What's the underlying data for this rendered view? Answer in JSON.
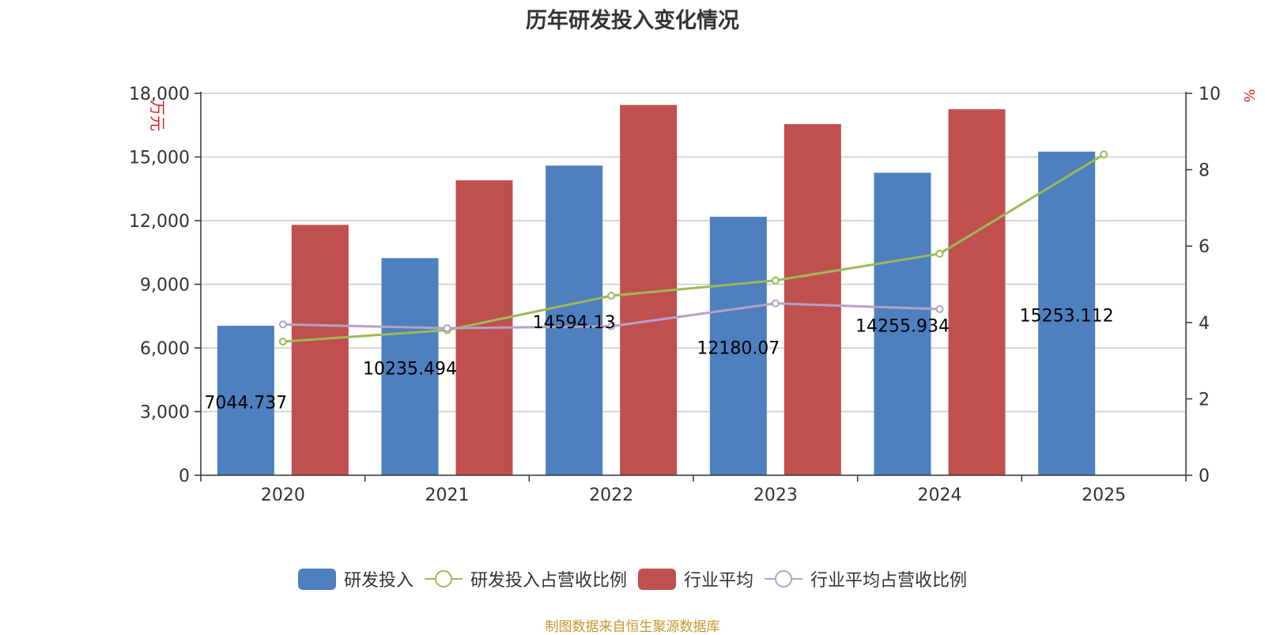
{
  "chart_data": {
    "type": "bar",
    "title": "历年研发投入变化情况",
    "categories": [
      "2020",
      "2021",
      "2022",
      "2023",
      "2024",
      "2025"
    ],
    "y_left": {
      "label": "万元",
      "ticks": [
        "0",
        "3,000",
        "6,000",
        "9,000",
        "12,000",
        "15,000",
        "18,000"
      ],
      "ylim": [
        0,
        18000
      ]
    },
    "y_right": {
      "label": "%",
      "ticks": [
        "0",
        "2",
        "4",
        "6",
        "8",
        "10"
      ],
      "ylim": [
        0,
        10
      ]
    },
    "series": [
      {
        "name": "研发投入",
        "type": "bar",
        "axis": "left",
        "color": "#4e7fbf",
        "values": [
          7044.737,
          10235.494,
          14594.13,
          12180.07,
          14255.934,
          15253.112
        ],
        "labels": [
          "7044.737",
          "10235.494",
          "14594.13",
          "12180.07",
          "14255.934",
          "15253.112"
        ]
      },
      {
        "name": "研发投入占营收比例",
        "type": "line",
        "axis": "right",
        "color": "#9bbb59",
        "values": [
          3.5,
          3.8,
          4.7,
          5.1,
          5.8,
          8.4
        ]
      },
      {
        "name": "行业平均",
        "type": "bar",
        "axis": "left",
        "color": "#c0504d",
        "values": [
          11800,
          13900,
          17450,
          16550,
          17250,
          null
        ]
      },
      {
        "name": "行业平均占营收比例",
        "type": "line",
        "axis": "right",
        "color": "#b3a2c7",
        "values": [
          3.95,
          3.85,
          3.9,
          4.5,
          4.35,
          null
        ]
      }
    ],
    "legend_position": "bottom-center",
    "grid": true
  },
  "source": "制图数据来自恒生聚源数据库"
}
